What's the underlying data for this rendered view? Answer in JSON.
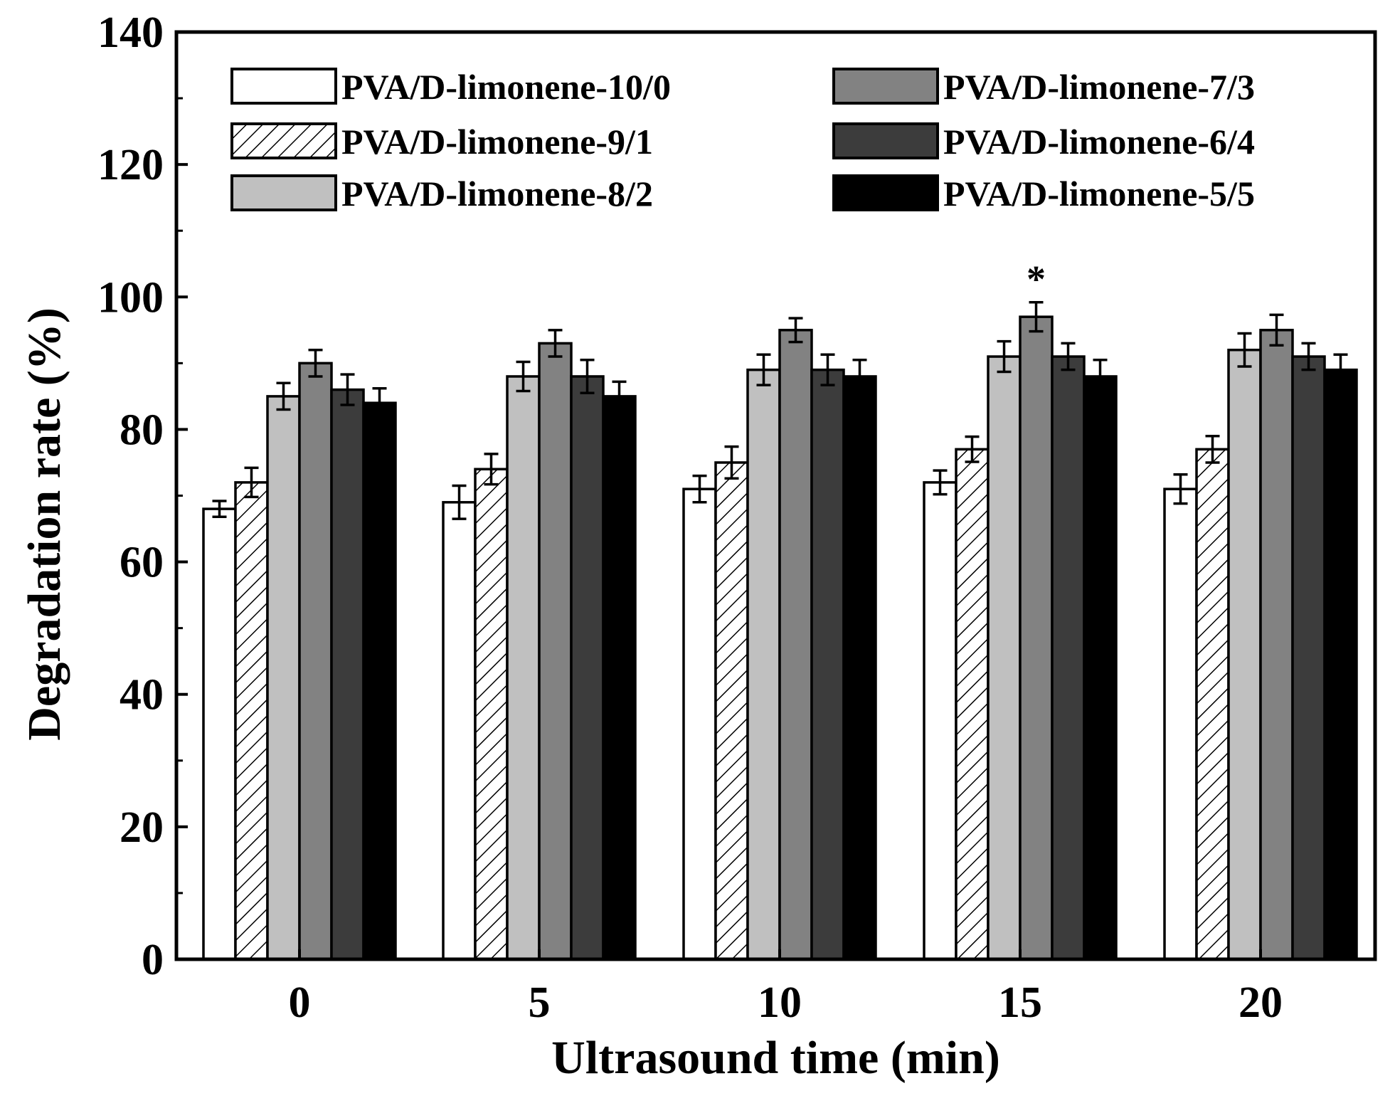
{
  "chart_data": {
    "type": "bar",
    "title": "",
    "xlabel": "Ultrasound time (min)",
    "ylabel": "Degradation rate (%)",
    "ylim": [
      0,
      140
    ],
    "yticks": [
      0,
      20,
      40,
      60,
      80,
      100,
      120,
      140
    ],
    "categories": [
      "0",
      "5",
      "10",
      "15",
      "20"
    ],
    "legend_placement": "top (two columns)",
    "series": [
      {
        "name": "PVA/D-limonene-10/0",
        "fill": "#ffffff",
        "pattern": "none",
        "values": [
          68,
          69,
          71,
          72,
          71
        ],
        "errors": [
          1.2,
          2.5,
          2.0,
          1.8,
          2.2
        ]
      },
      {
        "name": "PVA/D-limonene-9/1",
        "fill": "#ffffff",
        "pattern": "hatch",
        "values": [
          72,
          74,
          75,
          77,
          77
        ],
        "errors": [
          2.2,
          2.3,
          2.4,
          1.9,
          2.0
        ]
      },
      {
        "name": "PVA/D-limonene-8/2",
        "fill": "#c0c0c0",
        "pattern": "none",
        "values": [
          85,
          88,
          89,
          91,
          92
        ],
        "errors": [
          2.0,
          2.2,
          2.3,
          2.3,
          2.5
        ]
      },
      {
        "name": "PVA/D-limonene-7/3",
        "fill": "#828282",
        "pattern": "none",
        "values": [
          90,
          93,
          95,
          97,
          95
        ],
        "errors": [
          2.0,
          2.0,
          1.8,
          2.2,
          2.3
        ]
      },
      {
        "name": "PVA/D-limonene-6/4",
        "fill": "#3c3c3c",
        "pattern": "none",
        "values": [
          86,
          88,
          89,
          91,
          91
        ],
        "errors": [
          2.3,
          2.5,
          2.3,
          2.0,
          2.0
        ]
      },
      {
        "name": "PVA/D-limonene-5/5",
        "fill": "#000000",
        "pattern": "none",
        "values": [
          84,
          85,
          88,
          88,
          89
        ],
        "errors": [
          2.2,
          2.2,
          2.5,
          2.5,
          2.3
        ]
      }
    ],
    "annotations": [
      {
        "text": "*",
        "category": "15",
        "series": "PVA/D-limonene-7/3"
      }
    ]
  }
}
